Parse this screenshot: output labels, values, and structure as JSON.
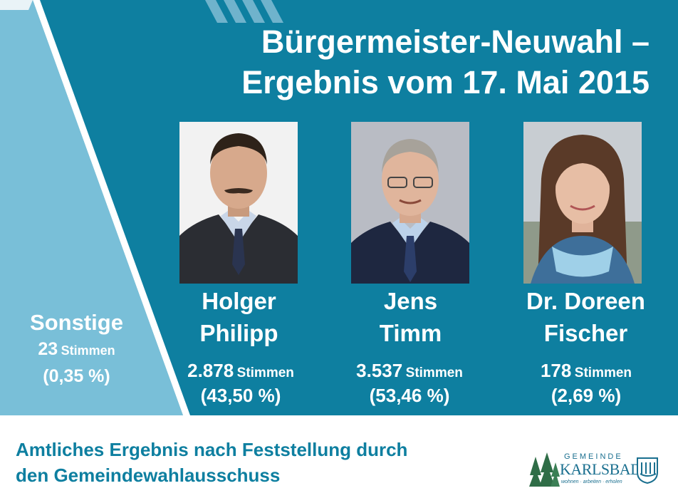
{
  "title": {
    "line1": "Bürgermeister-Neuwahl –",
    "line2": "Ergebnis vom 17. Mai 2015"
  },
  "candidates": [
    {
      "first": "Holger",
      "last": "Philipp",
      "votes": "2.878",
      "unit": "Stimmen",
      "percent": "(43,50 %)"
    },
    {
      "first": "Jens",
      "last": "Timm",
      "votes": "3.537",
      "unit": "Stimmen",
      "percent": "(53,46 %)"
    },
    {
      "first": "Dr. Doreen",
      "last": "Fischer",
      "votes": "178",
      "unit": "Stimmen",
      "percent": "(2,69 %)"
    }
  ],
  "others": {
    "label": "Sonstige",
    "votes": "23",
    "unit": "Stimmen",
    "percent": "(0,35 %)"
  },
  "footer": {
    "line1": "Amtliches Ergebnis nach Feststellung durch",
    "line2": "den Gemeindewahlausschuss"
  },
  "logo": {
    "gemeinde": "GEMEINDE",
    "name": "KARLSBAD",
    "tagline": "wohnen · arbeiten · erholen"
  },
  "colors": {
    "main_blue": "#0e7fa0",
    "light_blue": "#7dc3dc",
    "footer_text": "#0e7fa0"
  }
}
